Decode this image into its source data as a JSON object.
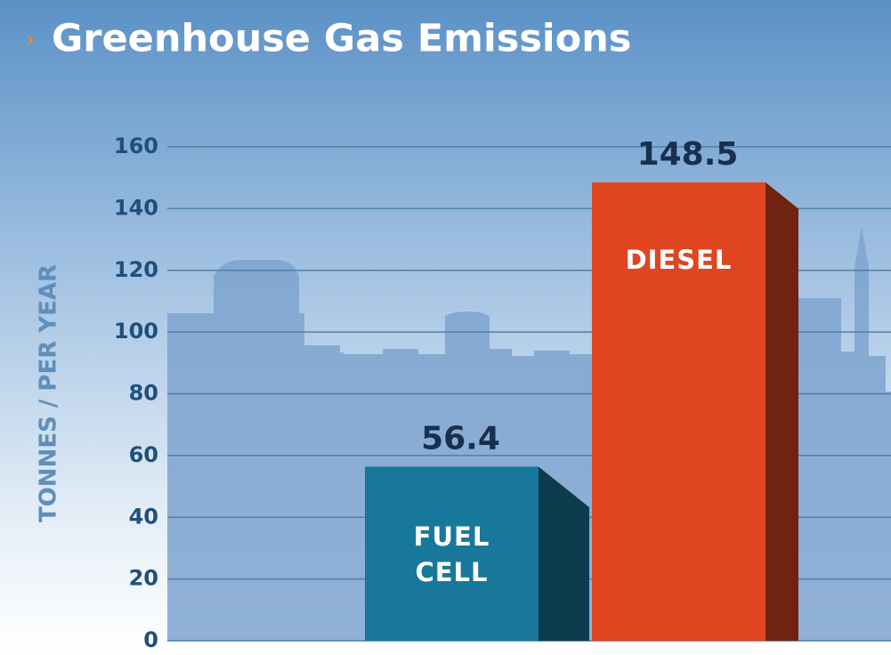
{
  "chart_data": {
    "type": "bar",
    "title": "Greenhouse Gas Emissions",
    "y_label": "TONNES / PER YEAR",
    "categories": [
      "FUEL CELL",
      "DIESEL"
    ],
    "values": [
      56.4,
      148.5
    ],
    "colors": [
      "#17789b",
      "#e04522"
    ],
    "ylim": [
      0,
      160
    ],
    "yticks": [
      0,
      20,
      40,
      60,
      80,
      100,
      120,
      140,
      160
    ],
    "grid": true
  }
}
